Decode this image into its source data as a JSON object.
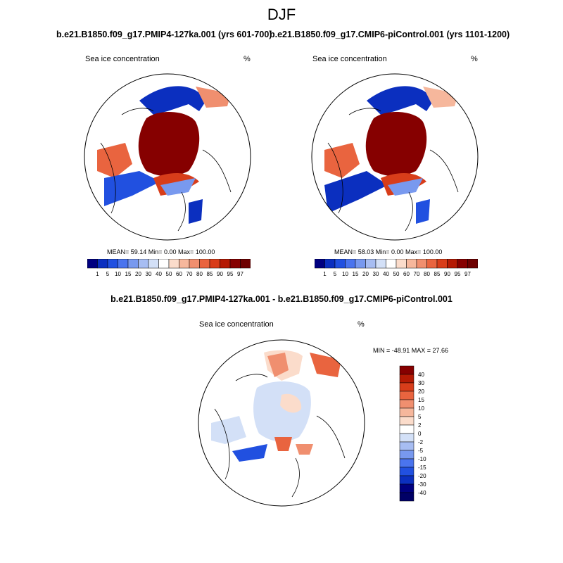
{
  "figure": {
    "title": "DJF"
  },
  "panels": [
    {
      "title": "b.e21.B1850.f09_g17.PMIP4-127ka.001 (yrs 601-700)",
      "variable_label": "Sea ice concentration",
      "units_label": "%",
      "stats_text": "MEAN=  59.14  Min=   0.00  Max= 100.00"
    },
    {
      "title": "b.e21.B1850.f09_g17.CMIP6-piControl.001 (yrs 1101-1200)",
      "variable_label": "Sea ice concentration",
      "units_label": "%",
      "stats_text": "MEAN=  58.03  Min=   0.00  Max= 100.00"
    },
    {
      "title": "b.e21.B1850.f09_g17.PMIP4-127ka.001 - b.e21.B1850.f09_g17.CMIP6-piControl.001",
      "variable_label": "Sea ice concentration",
      "units_label": "%",
      "stats_text": "MIN = -48.91 MAX =  27.66"
    }
  ],
  "colorbars": {
    "concentration": {
      "labels": [
        "1",
        "5",
        "10",
        "15",
        "20",
        "30",
        "40",
        "50",
        "60",
        "70",
        "80",
        "85",
        "90",
        "95",
        "97"
      ],
      "colors": [
        "#000080",
        "#0b2fbf",
        "#2150e0",
        "#4a74ee",
        "#7899ef",
        "#a7bdf2",
        "#d3e0f7",
        "#ffffff",
        "#fbdccb",
        "#f6b79c",
        "#f08f6f",
        "#e9643f",
        "#d83d1a",
        "#b41a04",
        "#860000",
        "#6d0000"
      ]
    },
    "difference": {
      "labels": [
        "40",
        "30",
        "20",
        "15",
        "10",
        "5",
        "2",
        "0",
        "-2",
        "-5",
        "-10",
        "-15",
        "-20",
        "-30",
        "-40"
      ],
      "colors": [
        "#860000",
        "#b41a04",
        "#d83d1a",
        "#e9643f",
        "#f08f6f",
        "#f6b79c",
        "#fbdccb",
        "#ffffff",
        "#d3e0f7",
        "#a7bdf2",
        "#7899ef",
        "#4a74ee",
        "#2150e0",
        "#0b2fbf",
        "#000080",
        "#000066"
      ]
    }
  }
}
